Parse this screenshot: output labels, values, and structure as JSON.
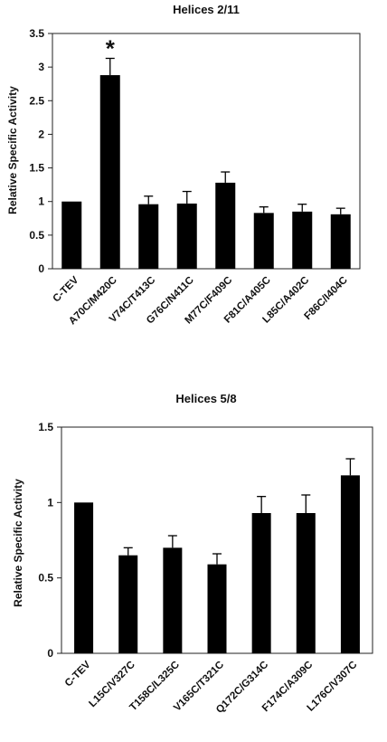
{
  "chart_data": [
    {
      "type": "bar",
      "title": "Helices 2/11",
      "xlabel": "",
      "ylabel": "Relative Specific Activity",
      "ylim": [
        0,
        3.5
      ],
      "yticks": [
        "0",
        "0.5",
        "1",
        "1.5",
        "2",
        "2.5",
        "3",
        "3.5"
      ],
      "categories": [
        "C-TEV",
        "A70C/M420C",
        "V74C/T413C",
        "G76C/N411C",
        "M77C/F409C",
        "F81C/A405C",
        "L85C/A402C",
        "F86C/I404C"
      ],
      "values": [
        1.0,
        2.88,
        0.96,
        0.97,
        1.28,
        0.83,
        0.85,
        0.81
      ],
      "errors": [
        0,
        0.25,
        0.12,
        0.18,
        0.16,
        0.09,
        0.11,
        0.09
      ],
      "annotations": [
        {
          "category": "A70C/M420C",
          "text": "*"
        }
      ],
      "bar_color": "#000000"
    },
    {
      "type": "bar",
      "title": "Helices 5/8",
      "xlabel": "",
      "ylabel": "Relative Specific Activity",
      "ylim": [
        0,
        1.5
      ],
      "yticks": [
        "0",
        "0.5",
        "1",
        "1.5"
      ],
      "categories": [
        "C-TEV",
        "L15C/V327C",
        "T158C/L325C",
        "V165C/T321C",
        "Q172C/G314C",
        "F174C/A309C",
        "L176C/V307C"
      ],
      "values": [
        1.0,
        0.65,
        0.7,
        0.59,
        0.93,
        0.93,
        1.18
      ],
      "errors": [
        0,
        0.05,
        0.08,
        0.07,
        0.11,
        0.12,
        0.11
      ],
      "annotations": [],
      "bar_color": "#000000"
    }
  ]
}
